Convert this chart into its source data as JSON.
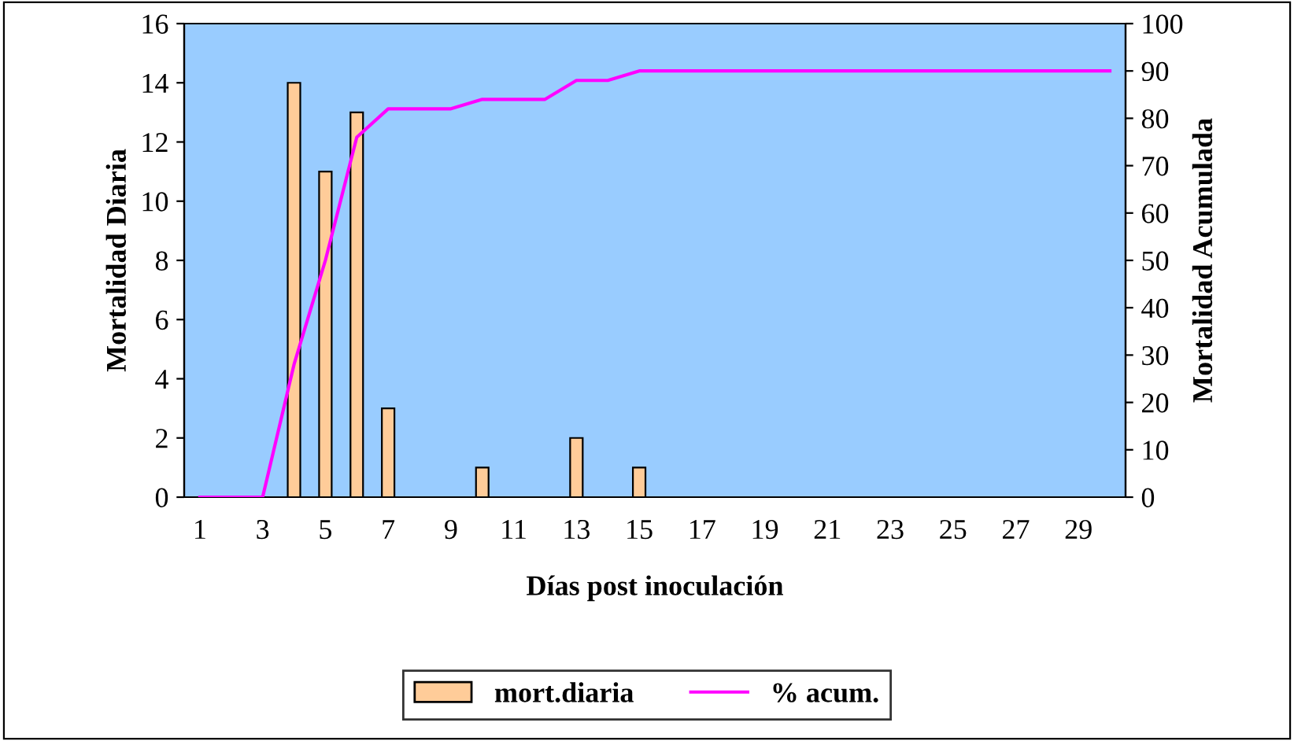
{
  "chart_data": {
    "type": "bar",
    "xlabel": "Días post inoculación",
    "ylabel": "Mortalidad Diaria",
    "y2label": "Mortalidad Acumulada",
    "categories": [
      "1",
      null,
      "3",
      null,
      "5",
      null,
      "7",
      null,
      "9",
      null,
      "11",
      null,
      "13",
      null,
      "15",
      null,
      "17",
      null,
      "19",
      null,
      "21",
      null,
      "23",
      null,
      "25",
      null,
      "27",
      null,
      "29",
      null
    ],
    "series": [
      {
        "name": "mort.diaria",
        "color": "#ffcc99",
        "values": [
          0,
          0,
          0,
          14,
          11,
          13,
          3,
          0,
          0,
          1,
          0,
          0,
          2,
          0,
          1,
          0,
          0,
          0,
          0,
          0,
          0,
          0,
          0,
          0,
          0,
          0,
          0,
          0,
          0,
          0
        ]
      },
      {
        "name": "% acum.",
        "type": "line",
        "axis": "y2",
        "color": "#ff00ff",
        "values": [
          0,
          0,
          0,
          28,
          50,
          76,
          82,
          82,
          82,
          84,
          84,
          84,
          88,
          88,
          90,
          90,
          90,
          90,
          90,
          90,
          90,
          90,
          90,
          90,
          90,
          90,
          90,
          90,
          90,
          90
        ]
      }
    ],
    "ylim": [
      0,
      16
    ],
    "yticks": [
      0,
      2,
      4,
      6,
      8,
      10,
      12,
      14,
      16
    ],
    "y2lim": [
      0,
      100
    ],
    "y2ticks": [
      0,
      10,
      20,
      30,
      40,
      50,
      60,
      70,
      80,
      90,
      100
    ],
    "grid": false,
    "legend": "bottom",
    "marker": "none",
    "line_style": "solid"
  }
}
